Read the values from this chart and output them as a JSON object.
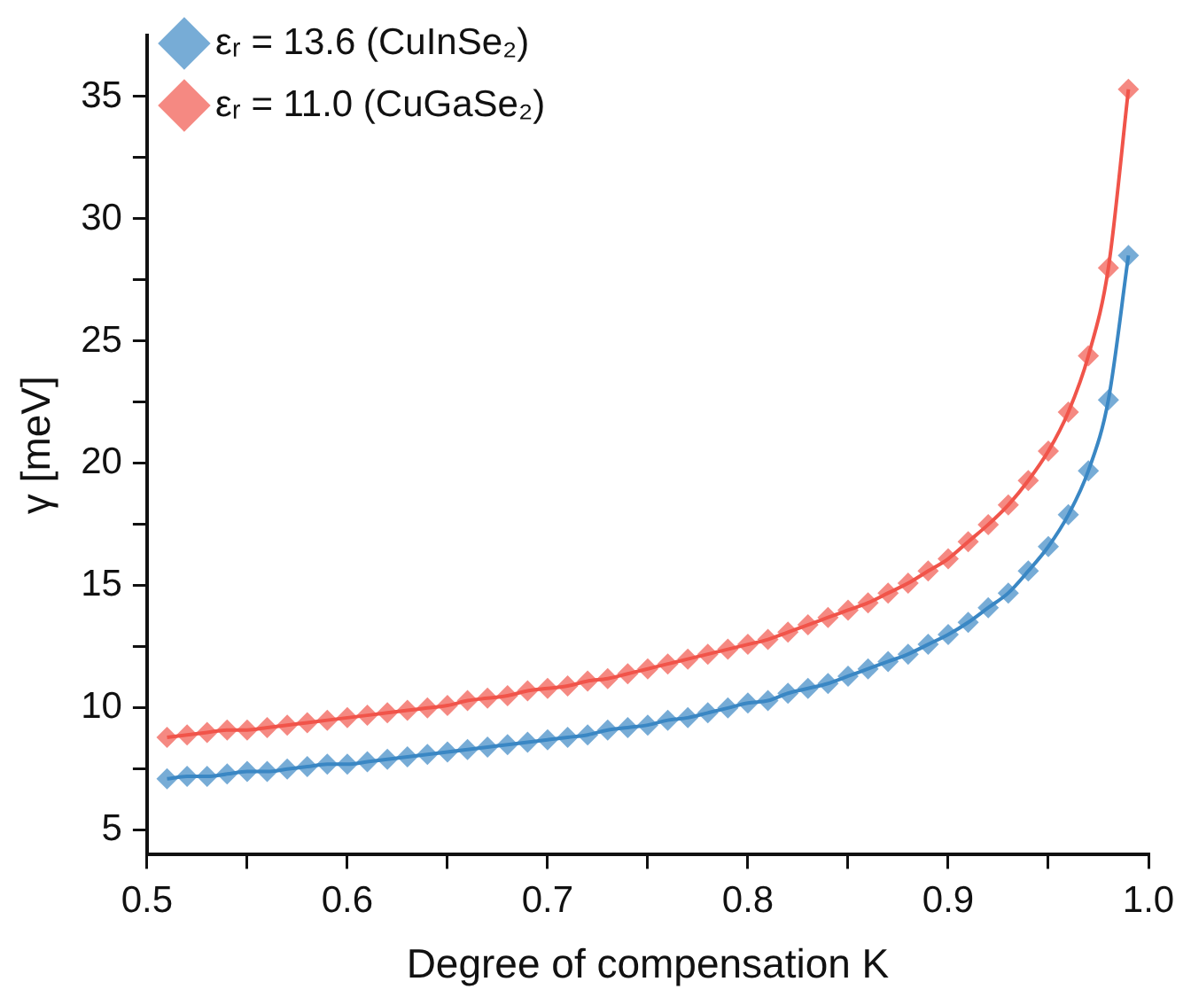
{
  "chart_data": {
    "type": "line",
    "xlabel": "Degree of compensation K",
    "ylabel": "γ [meV]",
    "x": [
      0.51,
      0.52,
      0.53,
      0.54,
      0.55,
      0.56,
      0.57,
      0.58,
      0.59,
      0.6,
      0.61,
      0.62,
      0.63,
      0.64,
      0.65,
      0.66,
      0.67,
      0.68,
      0.69,
      0.7,
      0.71,
      0.72,
      0.73,
      0.74,
      0.75,
      0.76,
      0.77,
      0.78,
      0.79,
      0.8,
      0.81,
      0.82,
      0.83,
      0.84,
      0.85,
      0.86,
      0.87,
      0.88,
      0.89,
      0.9,
      0.91,
      0.92,
      0.93,
      0.94,
      0.95,
      0.96,
      0.97,
      0.98,
      0.99
    ],
    "series": [
      {
        "name": "εᵣ = 13.6 (CuInSe₂)",
        "color": "#3a87c4",
        "values": [
          7.1,
          7.2,
          7.2,
          7.3,
          7.4,
          7.4,
          7.5,
          7.6,
          7.7,
          7.7,
          7.8,
          7.9,
          8.0,
          8.1,
          8.2,
          8.3,
          8.4,
          8.5,
          8.6,
          8.7,
          8.8,
          8.9,
          9.1,
          9.2,
          9.3,
          9.5,
          9.6,
          9.8,
          10.0,
          10.2,
          10.3,
          10.6,
          10.8,
          11.0,
          11.3,
          11.6,
          11.9,
          12.2,
          12.6,
          13.0,
          13.5,
          14.1,
          14.7,
          15.6,
          16.6,
          17.9,
          19.7,
          22.6,
          28.5
        ]
      },
      {
        "name": "εᵣ = 11.0 (CuGaSe₂)",
        "color": "#f0544a",
        "values": [
          8.8,
          8.9,
          9.0,
          9.1,
          9.1,
          9.2,
          9.3,
          9.4,
          9.5,
          9.6,
          9.7,
          9.8,
          9.9,
          10.0,
          10.1,
          10.3,
          10.4,
          10.5,
          10.7,
          10.8,
          10.9,
          11.1,
          11.2,
          11.4,
          11.6,
          11.8,
          12.0,
          12.2,
          12.4,
          12.6,
          12.8,
          13.1,
          13.4,
          13.7,
          14.0,
          14.3,
          14.7,
          15.1,
          15.6,
          16.1,
          16.8,
          17.5,
          18.3,
          19.3,
          20.5,
          22.1,
          24.4,
          28.0,
          35.3
        ]
      }
    ],
    "xlim": [
      0.5,
      1.0
    ],
    "xticks": [
      0.5,
      {
        "value": 0.55,
        "label": null
      },
      0.6,
      {
        "value": 0.65,
        "label": null
      },
      0.7,
      {
        "value": 0.75,
        "label": null
      },
      0.8,
      {
        "value": 0.85,
        "label": null
      },
      0.9,
      {
        "value": 0.95,
        "label": null
      },
      {
        "value": 1,
        "label": "1.0"
      }
    ],
    "ylim": [
      4,
      37.5
    ],
    "yticks": [
      5,
      {
        "value": 7.5,
        "label": null
      },
      10,
      {
        "value": 12.5,
        "label": null
      },
      15,
      {
        "value": 17.5,
        "label": null
      },
      20,
      {
        "value": 22.5,
        "label": null
      },
      25,
      {
        "value": 27.5,
        "label": null
      },
      30,
      {
        "value": 32.5,
        "label": null
      },
      35
    ],
    "grid": false,
    "legend": "top left",
    "marker": "diamond",
    "line_style": "solid"
  }
}
